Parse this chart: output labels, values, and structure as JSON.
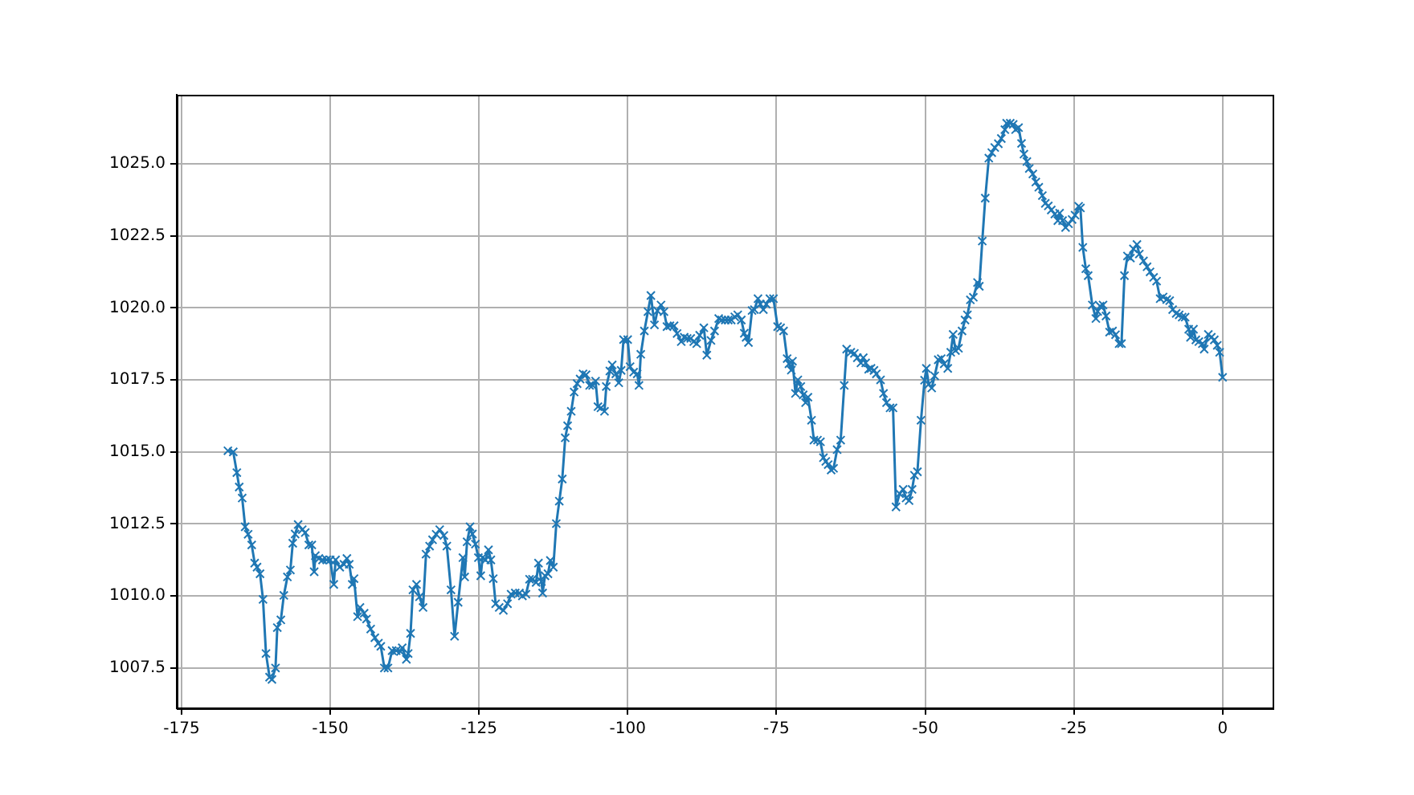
{
  "chart_data": {
    "type": "line",
    "marker": "cross",
    "grid": true,
    "legend": false,
    "xlim": [
      -175.8,
      8.4
    ],
    "ylim": [
      1006.1,
      1027.4
    ],
    "xticks": [
      -175,
      -150,
      -125,
      -100,
      -75,
      -50,
      -25,
      0
    ],
    "yticks": [
      1007.5,
      {
        "value": 1010,
        "label": "1010.0"
      },
      1012.5,
      {
        "value": 1015,
        "label": "1015.0"
      },
      1017.5,
      {
        "value": 1020,
        "label": "1020.0"
      },
      1022.5,
      {
        "value": 1025,
        "label": "1025.0"
      }
    ],
    "series": [
      {
        "color": "#1f77b4",
        "x": [
          -167.2,
          -166.3,
          -165.7,
          -165.3,
          -164.8,
          -164.3,
          -163.8,
          -163.2,
          -162.7,
          -162.3,
          -161.8,
          -161.3,
          -160.8,
          -160.2,
          -159.8,
          -159.2,
          -158.9,
          -158.3,
          -157.8,
          -157.2,
          -156.7,
          -156.3,
          -155.9,
          -155.4,
          -154.7,
          -154.2,
          -153.6,
          -153.1,
          -152.7,
          -152.5,
          -151.9,
          -151.3,
          -150.6,
          -150.0,
          -149.4,
          -149.1,
          -148.4,
          -147.7,
          -147.2,
          -146.8,
          -146.3,
          -146.0,
          -145.4,
          -145.0,
          -144.3,
          -143.9,
          -143.2,
          -142.5,
          -141.9,
          -141.5,
          -140.9,
          -140.3,
          -139.6,
          -138.9,
          -138.2,
          -137.9,
          -137.2,
          -136.9,
          -136.5,
          -136.1,
          -135.5,
          -135.0,
          -134.4,
          -133.9,
          -133.3,
          -132.8,
          -132.2,
          -131.6,
          -130.9,
          -130.4,
          -129.7,
          -129.1,
          -128.5,
          -127.7,
          -127.4,
          -127.0,
          -126.5,
          -126.1,
          -125.6,
          -125.1,
          -124.7,
          -124.4,
          -123.9,
          -123.4,
          -123.0,
          -122.6,
          -122.2,
          -121.6,
          -120.9,
          -120.2,
          -119.6,
          -118.9,
          -118.2,
          -117.7,
          -117.1,
          -116.5,
          -116.0,
          -115.4,
          -115.0,
          -114.5,
          -114.3,
          -113.9,
          -113.4,
          -113.0,
          -112.5,
          -112.0,
          -111.5,
          -111.0,
          -110.5,
          -110.1,
          -109.5,
          -109.0,
          -108.5,
          -108.0,
          -107.5,
          -107.0,
          -106.4,
          -105.9,
          -105.4,
          -105.0,
          -104.5,
          -103.9,
          -103.6,
          -103.0,
          -102.6,
          -102.0,
          -101.5,
          -101.1,
          -100.7,
          -100.0,
          -99.6,
          -99.0,
          -98.4,
          -98.1,
          -97.8,
          -97.2,
          -96.6,
          -96.1,
          -95.5,
          -95.0,
          -94.4,
          -93.9,
          -93.4,
          -92.9,
          -92.2,
          -91.7,
          -91.0,
          -90.5,
          -90.0,
          -89.4,
          -88.9,
          -88.4,
          -87.9,
          -87.2,
          -86.7,
          -86.0,
          -85.4,
          -84.7,
          -84.2,
          -83.6,
          -83.1,
          -82.6,
          -82.0,
          -81.5,
          -80.9,
          -80.4,
          -80.1,
          -79.7,
          -79.1,
          -78.7,
          -78.1,
          -77.7,
          -77.2,
          -76.7,
          -76.1,
          -75.5,
          -74.8,
          -74.3,
          -73.8,
          -73.2,
          -72.9,
          -72.5,
          -72.3,
          -71.8,
          -71.4,
          -70.9,
          -70.5,
          -70.1,
          -69.7,
          -69.1,
          -68.7,
          -68.1,
          -67.6,
          -67.1,
          -66.7,
          -66.3,
          -65.8,
          -65.4,
          -64.8,
          -64.2,
          -63.6,
          -63.2,
          -62.5,
          -61.9,
          -61.4,
          -60.8,
          -60.4,
          -60.0,
          -59.5,
          -59.1,
          -58.6,
          -58.2,
          -57.5,
          -57.0,
          -56.5,
          -55.9,
          -55.4,
          -54.9,
          -54.3,
          -53.7,
          -53.2,
          -52.7,
          -52.2,
          -51.8,
          -51.3,
          -50.7,
          -50.1,
          -49.8,
          -49.4,
          -48.9,
          -48.4,
          -47.8,
          -47.3,
          -46.8,
          -46.2,
          -45.7,
          -45.3,
          -44.9,
          -44.4,
          -43.8,
          -43.3,
          -42.9,
          -42.4,
          -41.9,
          -41.2,
          -40.9,
          -40.4,
          -39.9,
          -39.3,
          -38.8,
          -38.3,
          -37.7,
          -37.2,
          -36.6,
          -36.3,
          -35.7,
          -35.2,
          -34.8,
          -34.3,
          -33.8,
          -33.4,
          -32.9,
          -32.5,
          -31.9,
          -31.4,
          -30.9,
          -30.3,
          -29.8,
          -29.3,
          -28.8,
          -28.2,
          -27.7,
          -27.4,
          -26.9,
          -26.4,
          -25.9,
          -25.3,
          -24.8,
          -24.2,
          -23.9,
          -23.5,
          -23.0,
          -22.6,
          -21.9,
          -21.3,
          -21.0,
          -20.6,
          -20.1,
          -19.6,
          -19.0,
          -18.5,
          -18.0,
          -17.4,
          -17.0,
          -16.5,
          -16.0,
          -15.5,
          -15.0,
          -14.4,
          -14.0,
          -13.3,
          -12.7,
          -12.2,
          -11.6,
          -11.1,
          -10.5,
          -10.0,
          -9.4,
          -8.9,
          -8.4,
          -7.8,
          -7.3,
          -6.8,
          -6.3,
          -5.7,
          -5.4,
          -4.9,
          -4.5,
          -4.0,
          -3.4,
          -3.1,
          -2.4,
          -1.9,
          -1.4,
          -0.9,
          -0.5,
          0
        ],
        "values": [
          1015.04,
          1015.0,
          1014.28,
          1013.78,
          1013.4,
          1012.4,
          1012.14,
          1011.77,
          1011.14,
          1011.0,
          1010.77,
          1009.88,
          1008.0,
          1007.18,
          1007.1,
          1007.5,
          1008.9,
          1009.17,
          1010.02,
          1010.66,
          1010.9,
          1011.83,
          1012.15,
          1012.48,
          1012.3,
          1012.2,
          1011.77,
          1011.77,
          1010.84,
          1011.4,
          1011.3,
          1011.25,
          1011.25,
          1011.25,
          1010.4,
          1011.25,
          1011.0,
          1011.1,
          1011.3,
          1011.1,
          1010.4,
          1010.6,
          1009.28,
          1009.6,
          1009.4,
          1009.2,
          1008.85,
          1008.55,
          1008.36,
          1008.25,
          1007.5,
          1007.5,
          1008.1,
          1008.1,
          1008.07,
          1008.2,
          1007.8,
          1008.0,
          1008.7,
          1010.21,
          1010.4,
          1009.97,
          1009.6,
          1011.45,
          1011.73,
          1011.95,
          1012.14,
          1012.3,
          1012.1,
          1011.73,
          1010.21,
          1008.6,
          1009.78,
          1011.33,
          1010.66,
          1011.88,
          1012.4,
          1012.15,
          1011.8,
          1011.33,
          1010.7,
          1011.33,
          1011.25,
          1011.6,
          1011.25,
          1010.6,
          1009.73,
          1009.6,
          1009.5,
          1009.73,
          1010.06,
          1010.1,
          1010.1,
          1010.0,
          1010.06,
          1010.58,
          1010.58,
          1010.47,
          1011.14,
          1010.5,
          1010.1,
          1010.7,
          1010.77,
          1011.23,
          1011.0,
          1012.51,
          1013.29,
          1014.06,
          1015.49,
          1015.91,
          1016.41,
          1017.08,
          1017.37,
          1017.53,
          1017.71,
          1017.68,
          1017.31,
          1017.31,
          1017.46,
          1016.57,
          1016.53,
          1016.41,
          1017.27,
          1017.81,
          1018.02,
          1017.71,
          1017.4,
          1017.83,
          1018.9,
          1018.9,
          1017.96,
          1017.77,
          1017.71,
          1017.31,
          1018.39,
          1019.2,
          1019.87,
          1020.43,
          1019.41,
          1019.9,
          1020.1,
          1019.87,
          1019.35,
          1019.38,
          1019.38,
          1019.11,
          1018.83,
          1018.98,
          1018.94,
          1018.94,
          1018.83,
          1018.76,
          1019.05,
          1019.31,
          1018.36,
          1018.87,
          1019.2,
          1019.63,
          1019.58,
          1019.58,
          1019.58,
          1019.58,
          1019.69,
          1019.76,
          1019.58,
          1019.12,
          1018.98,
          1018.8,
          1019.91,
          1019.94,
          1020.32,
          1020.13,
          1019.94,
          1020.13,
          1020.32,
          1020.32,
          1019.35,
          1019.31,
          1019.2,
          1018.24,
          1018.06,
          1017.84,
          1018.15,
          1017.03,
          1017.5,
          1017.27,
          1016.98,
          1016.71,
          1016.9,
          1016.1,
          1015.41,
          1015.41,
          1015.35,
          1014.8,
          1014.67,
          1014.56,
          1014.37,
          1014.43,
          1015.08,
          1015.41,
          1017.31,
          1018.57,
          1018.46,
          1018.42,
          1018.27,
          1018.09,
          1018.27,
          1018.09,
          1017.87,
          1017.9,
          1017.83,
          1017.71,
          1017.5,
          1017.03,
          1016.71,
          1016.53,
          1016.53,
          1013.09,
          1013.55,
          1013.7,
          1013.4,
          1013.31,
          1013.7,
          1014.19,
          1014.31,
          1016.1,
          1017.49,
          1017.9,
          1017.35,
          1017.22,
          1017.64,
          1018.2,
          1018.24,
          1018.06,
          1017.9,
          1018.46,
          1019.08,
          1018.52,
          1018.6,
          1019.2,
          1019.58,
          1019.76,
          1020.28,
          1020.37,
          1020.88,
          1020.75,
          1022.32,
          1023.81,
          1025.2,
          1025.39,
          1025.57,
          1025.7,
          1025.88,
          1026.19,
          1026.41,
          1026.41,
          1026.37,
          1026.19,
          1026.26,
          1025.71,
          1025.34,
          1025.08,
          1024.84,
          1024.65,
          1024.37,
          1024.19,
          1023.9,
          1023.63,
          1023.54,
          1023.4,
          1023.26,
          1023.03,
          1023.29,
          1023.03,
          1022.79,
          1022.92,
          1023.07,
          1023.22,
          1023.53,
          1023.47,
          1022.1,
          1021.36,
          1021.12,
          1020.1,
          1019.63,
          1019.88,
          1020.06,
          1020.1,
          1019.72,
          1019.16,
          1019.2,
          1019.07,
          1018.76,
          1018.76,
          1021.12,
          1021.8,
          1021.73,
          1022.05,
          1022.2,
          1021.87,
          1021.63,
          1021.43,
          1021.25,
          1021.06,
          1020.93,
          1020.32,
          1020.38,
          1020.29,
          1020.25,
          1019.94,
          1019.81,
          1019.76,
          1019.68,
          1019.68,
          1019.26,
          1018.98,
          1019.26,
          1018.89,
          1018.83,
          1018.76,
          1018.57,
          1019.08,
          1018.98,
          1018.89,
          1018.7,
          1018.46,
          1017.59
        ]
      }
    ]
  }
}
